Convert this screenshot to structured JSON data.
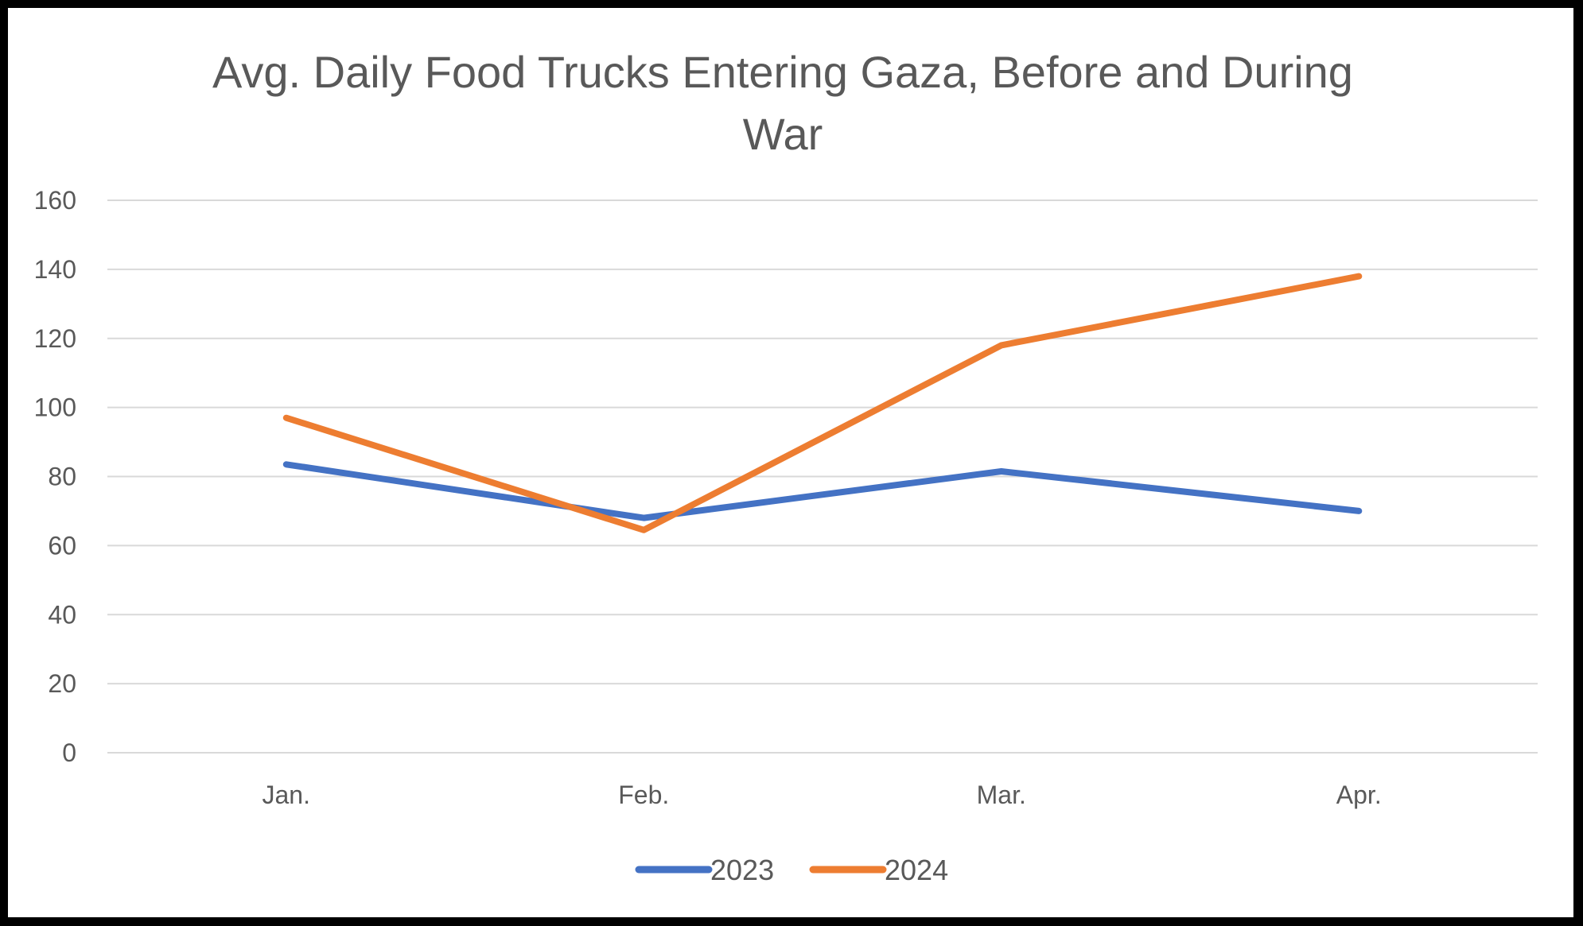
{
  "chart_data": {
    "type": "line",
    "title": "Avg. Daily Food Trucks Entering Gaza, Before and During War",
    "xlabel": "",
    "ylabel": "",
    "categories": [
      "Jan.",
      "Feb.",
      "Mar.",
      "Apr."
    ],
    "series": [
      {
        "name": "2023",
        "values": [
          83.5,
          68,
          81.5,
          70
        ],
        "color": "#4472C4"
      },
      {
        "name": "2024",
        "values": [
          97,
          64.5,
          118,
          138
        ],
        "color": "#ED7D31"
      }
    ],
    "ylim": [
      0,
      160
    ],
    "yticks": [
      0,
      20,
      40,
      60,
      80,
      100,
      120,
      140,
      160
    ],
    "grid": true,
    "legend": "bottom-center",
    "gridColor": "#D9D9D9",
    "textColor": "#595959"
  }
}
